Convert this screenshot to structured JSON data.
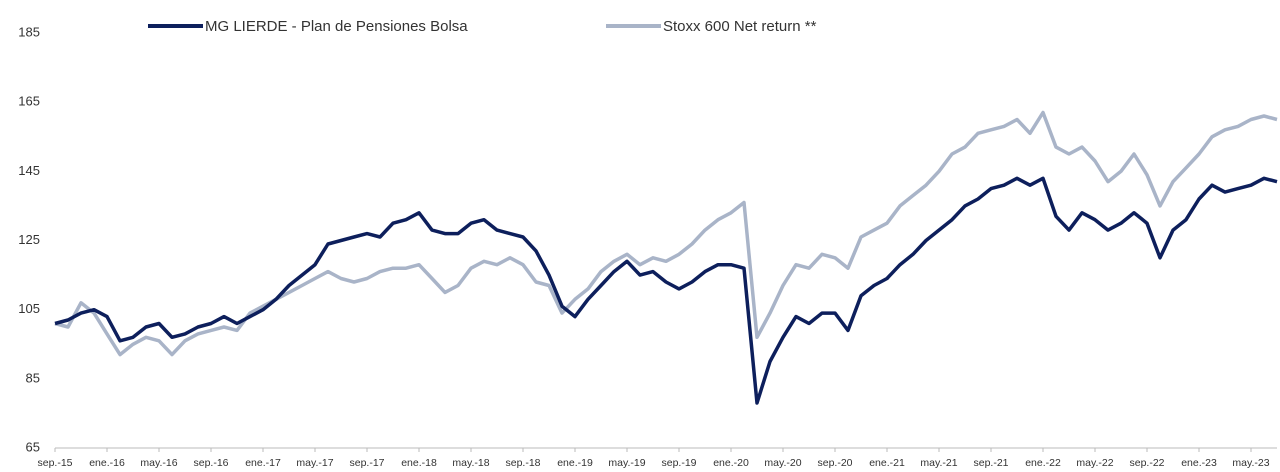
{
  "chart_data": {
    "type": "line",
    "categories": [
      "sep.-15",
      null,
      null,
      null,
      "ene.-16",
      null,
      null,
      null,
      "may.-16",
      null,
      null,
      null,
      "sep.-16",
      null,
      null,
      null,
      "ene.-17",
      null,
      null,
      null,
      "may.-17",
      null,
      null,
      null,
      "sep.-17",
      null,
      null,
      null,
      "ene.-18",
      null,
      null,
      null,
      "may.-18",
      null,
      null,
      null,
      "sep.-18",
      null,
      null,
      null,
      "ene.-19",
      null,
      null,
      null,
      "may.-19",
      null,
      null,
      null,
      "sep.-19",
      null,
      null,
      null,
      "ene.-20",
      null,
      null,
      null,
      "may.-20",
      null,
      null,
      null,
      "sep.-20",
      null,
      null,
      null,
      "ene.-21",
      null,
      null,
      null,
      "may.-21",
      null,
      null,
      null,
      "sep.-21",
      null,
      null,
      null,
      "ene.-22",
      null,
      null,
      null,
      "may.-22",
      null,
      null,
      null,
      "sep.-22",
      null,
      null,
      null,
      "ene.-23",
      null,
      null,
      null,
      "may.-23",
      null,
      null
    ],
    "series": [
      {
        "name": "MG LIERDE - Plan de Pensiones Bolsa",
        "color": "#0d1f5c",
        "values": [
          101,
          102,
          104,
          105,
          103,
          96,
          97,
          100,
          101,
          97,
          98,
          100,
          101,
          103,
          101,
          103,
          105,
          108,
          112,
          115,
          118,
          124,
          125,
          126,
          127,
          126,
          130,
          131,
          133,
          128,
          127,
          127,
          130,
          131,
          128,
          127,
          126,
          122,
          115,
          106,
          103,
          108,
          112,
          116,
          119,
          115,
          116,
          113,
          111,
          113,
          116,
          118,
          118,
          117,
          78,
          90,
          97,
          103,
          101,
          104,
          104,
          99,
          109,
          112,
          114,
          118,
          121,
          125,
          128,
          131,
          135,
          137,
          140,
          141,
          143,
          141,
          143,
          132,
          128,
          133,
          131,
          128,
          130,
          133,
          130,
          120,
          128,
          131,
          137,
          141,
          139,
          140,
          141,
          143,
          142
        ]
      },
      {
        "name": "Stoxx 600 Net return **",
        "color": "#a9b4c8",
        "values": [
          101,
          100,
          107,
          104,
          98,
          92,
          95,
          97,
          96,
          92,
          96,
          98,
          99,
          100,
          99,
          104,
          106,
          108,
          110,
          112,
          114,
          116,
          114,
          113,
          114,
          116,
          117,
          117,
          118,
          114,
          110,
          112,
          117,
          119,
          118,
          120,
          118,
          113,
          112,
          104,
          108,
          111,
          116,
          119,
          121,
          118,
          120,
          119,
          121,
          124,
          128,
          131,
          133,
          136,
          97,
          104,
          112,
          118,
          117,
          121,
          120,
          117,
          126,
          128,
          130,
          135,
          138,
          141,
          145,
          150,
          152,
          156,
          157,
          158,
          160,
          156,
          162,
          152,
          150,
          152,
          148,
          142,
          145,
          150,
          144,
          135,
          142,
          146,
          150,
          155,
          157,
          158,
          160,
          161,
          160
        ]
      }
    ],
    "ylim": [
      65,
      185
    ],
    "yticks": [
      65,
      85,
      105,
      125,
      145,
      165,
      185
    ]
  }
}
